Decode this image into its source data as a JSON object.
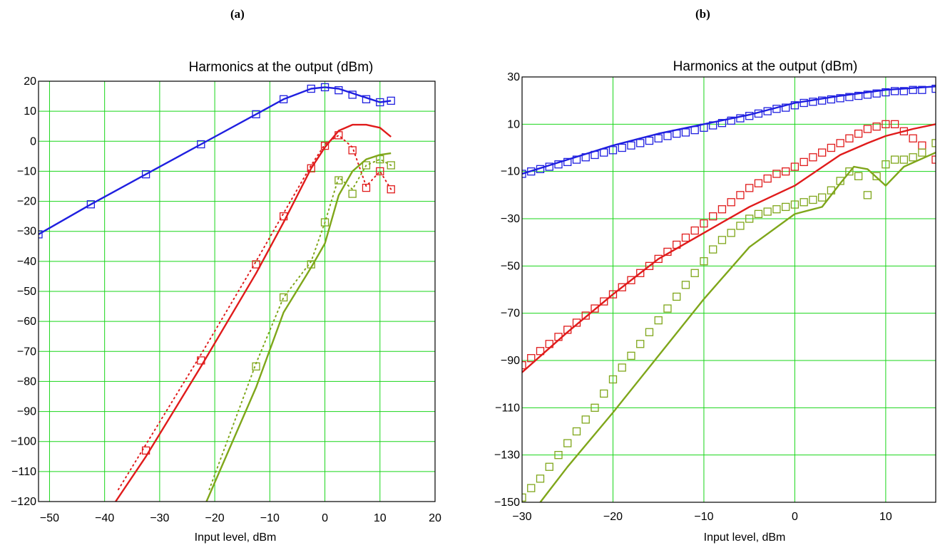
{
  "panels": {
    "a": {
      "label": "(a)"
    },
    "b": {
      "label": "(b)"
    }
  },
  "colors": {
    "fundamental": "#1f1fe0",
    "second": "#e01b1b",
    "third": "#7fa61a",
    "grid": "#19d619"
  },
  "chart_data": [
    {
      "type": "line",
      "title": "Harmonics at the output (dBm)",
      "xlabel": "Input level, dBm",
      "ylabel": "",
      "xlim": [
        -52,
        20
      ],
      "ylim": [
        -120,
        20
      ],
      "xticks": [
        -50,
        -40,
        -30,
        -20,
        -10,
        0,
        10,
        20
      ],
      "yticks": [
        20,
        10,
        0,
        -10,
        -20,
        -30,
        -40,
        -50,
        -60,
        -70,
        -80,
        -90,
        -100,
        -110,
        -120
      ],
      "grid": true,
      "series": [
        {
          "key": "fundamental",
          "style": "solid",
          "x": [
            -52,
            -42.5,
            -32.5,
            -22.5,
            -12.5,
            -7.5,
            -2.5,
            0,
            2.5,
            5,
            7.5,
            10,
            12
          ],
          "y": [
            -31,
            -21,
            -11,
            -1,
            9,
            14,
            17.5,
            18,
            17.5,
            16,
            14.5,
            13,
            13.5
          ]
        },
        {
          "key": "fundamental",
          "style": "markers",
          "x": [
            -52,
            -42.5,
            -32.5,
            -22.5,
            -12.5,
            -7.5,
            -2.5,
            0,
            2.5,
            5,
            7.5,
            10,
            12
          ],
          "y": [
            -31,
            -21,
            -11,
            -1,
            9,
            14,
            17.5,
            18,
            17,
            15.5,
            14,
            13,
            13.5
          ]
        },
        {
          "key": "second",
          "style": "solid",
          "x": [
            -38,
            -32.5,
            -22.5,
            -12.5,
            -7.5,
            -2.5,
            0,
            2.5,
            5,
            7.5,
            10,
            12
          ],
          "y": [
            -120,
            -105,
            -75,
            -44,
            -27,
            -9,
            -2,
            3.5,
            5.5,
            5.5,
            4.5,
            1.5
          ]
        },
        {
          "key": "second",
          "style": "dotted",
          "x": [
            -37.5,
            -32.5,
            -22.5,
            -12.5,
            -7.5,
            -2.5,
            0,
            2.5,
            5,
            7.5,
            10,
            12
          ],
          "y": [
            -116,
            -101,
            -71,
            -40,
            -24,
            -8,
            -1,
            2,
            -2,
            -15,
            -10,
            -16
          ]
        },
        {
          "key": "second",
          "style": "markers",
          "x": [
            -32.5,
            -22.5,
            -12.5,
            -7.5,
            -2.5,
            0,
            2.5,
            5,
            7.5,
            10,
            12
          ],
          "y": [
            -103,
            -73,
            -41,
            -25,
            -9,
            -1.5,
            2,
            -3,
            -15.5,
            -10,
            -16
          ]
        },
        {
          "key": "third",
          "style": "solid",
          "x": [
            -21.5,
            -12.5,
            -7.5,
            -2.5,
            0,
            2.5,
            5,
            7.5,
            10,
            12
          ],
          "y": [
            -120,
            -82,
            -57,
            -42,
            -34,
            -18,
            -10,
            -6,
            -4.5,
            -4
          ]
        },
        {
          "key": "third",
          "style": "dotted",
          "x": [
            -21,
            -12.5,
            -7.5,
            -2.5,
            0,
            2.5,
            5,
            7.5,
            10,
            12
          ],
          "y": [
            -116,
            -74,
            -52,
            -40,
            -27,
            -12,
            -16,
            -8,
            -6,
            -8
          ]
        },
        {
          "key": "third",
          "style": "markers",
          "x": [
            -12.5,
            -7.5,
            -2.5,
            0,
            2.5,
            5,
            7.5,
            10,
            12
          ],
          "y": [
            -75,
            -52,
            -41,
            -27,
            -13,
            -17.5,
            -8,
            -6,
            -8
          ]
        }
      ]
    },
    {
      "type": "line",
      "title": "Harmonics at the output (dBm)",
      "xlabel": "Input level, dBm",
      "ylabel": "",
      "xlim": [
        -30,
        15.5
      ],
      "ylim": [
        -150,
        30
      ],
      "xticks": [
        -30,
        -20,
        -10,
        0,
        10
      ],
      "yticks": [
        30,
        10,
        -10,
        -30,
        -50,
        -70,
        -90,
        -110,
        -130,
        -150
      ],
      "grid": true,
      "series": [
        {
          "key": "fundamental",
          "style": "solid",
          "x": [
            -30,
            -25,
            -20,
            -15,
            -10,
            -5,
            0,
            5,
            10,
            15.5
          ],
          "y": [
            -11,
            -5,
            1,
            6,
            10,
            14,
            19,
            22,
            24.5,
            26
          ]
        },
        {
          "key": "fundamental",
          "style": "markers",
          "x": [
            -30,
            -29,
            -28,
            -27,
            -26,
            -25,
            -24,
            -23,
            -22,
            -21,
            -20,
            -19,
            -18,
            -17,
            -16,
            -15,
            -14,
            -13,
            -12,
            -11,
            -10,
            -9,
            -8,
            -7,
            -6,
            -5,
            -4,
            -3,
            -2,
            -1,
            0,
            1,
            2,
            3,
            4,
            5,
            6,
            7,
            8,
            9,
            10,
            11,
            12,
            13,
            14,
            15.5
          ],
          "y": [
            -11,
            -10,
            -9,
            -8,
            -7,
            -6,
            -5,
            -4,
            -3,
            -2,
            -1,
            0,
            1,
            2,
            3,
            4,
            5,
            6,
            6.5,
            7.5,
            8.5,
            9.5,
            10.5,
            11.5,
            12.5,
            13.5,
            14.5,
            15.5,
            16.5,
            17,
            18,
            19,
            19.5,
            20,
            20.5,
            21,
            21.5,
            22,
            22.5,
            23,
            23.5,
            24,
            24,
            24.5,
            24.5,
            25
          ]
        },
        {
          "key": "second",
          "style": "solid",
          "x": [
            -30,
            -25,
            -20,
            -15,
            -10,
            -5,
            0,
            5,
            8,
            10,
            13,
            15.5
          ],
          "y": [
            -95,
            -78,
            -62,
            -47,
            -36,
            -25,
            -16,
            -3,
            2,
            5,
            8,
            10
          ]
        },
        {
          "key": "second",
          "style": "markers",
          "x": [
            -30,
            -29,
            -28,
            -27,
            -26,
            -25,
            -24,
            -23,
            -22,
            -21,
            -20,
            -19,
            -18,
            -17,
            -16,
            -15,
            -14,
            -13,
            -12,
            -11,
            -10,
            -9,
            -8,
            -7,
            -6,
            -5,
            -4,
            -3,
            -2,
            -1,
            0,
            1,
            2,
            3,
            4,
            5,
            6,
            7,
            8,
            9,
            10,
            11,
            12,
            13,
            14,
            15.5
          ],
          "y": [
            -92,
            -89,
            -86,
            -83,
            -80,
            -77,
            -74,
            -71,
            -68,
            -65,
            -62,
            -59,
            -56,
            -53,
            -50,
            -47,
            -44,
            -41,
            -38,
            -35,
            -32,
            -29,
            -26,
            -23,
            -20,
            -17,
            -15,
            -13,
            -11,
            -10,
            -8,
            -6,
            -4,
            -2,
            0,
            2,
            4,
            6,
            8,
            9,
            10,
            10,
            7,
            4,
            1,
            -5
          ]
        },
        {
          "key": "third",
          "style": "solid",
          "x": [
            -28,
            -25,
            -20,
            -15,
            -10,
            -5,
            0,
            3,
            5,
            6.5,
            8,
            10,
            12,
            15.5
          ],
          "y": [
            -150,
            -135,
            -112,
            -88,
            -64,
            -42,
            -28,
            -25,
            -15,
            -8,
            -9,
            -16,
            -8,
            -2
          ]
        },
        {
          "key": "third",
          "style": "markers",
          "x": [
            -30,
            -29,
            -28,
            -27,
            -26,
            -25,
            -24,
            -23,
            -22,
            -21,
            -20,
            -19,
            -18,
            -17,
            -16,
            -15,
            -14,
            -13,
            -12,
            -11,
            -10,
            -9,
            -8,
            -7,
            -6,
            -5,
            -4,
            -3,
            -2,
            -1,
            0,
            1,
            2,
            3,
            4,
            5,
            6,
            7,
            8,
            9,
            10,
            11,
            12,
            13,
            14,
            15.5
          ],
          "y": [
            -148,
            -144,
            -140,
            -135,
            -130,
            -125,
            -120,
            -115,
            -110,
            -104,
            -98,
            -93,
            -88,
            -83,
            -78,
            -73,
            -68,
            -63,
            -58,
            -53,
            -48,
            -43,
            -39,
            -36,
            -33,
            -30,
            -28,
            -27,
            -26,
            -25,
            -24,
            -23,
            -22,
            -21,
            -18,
            -14,
            -10,
            -12,
            -20,
            -12,
            -7,
            -5,
            -5,
            -4,
            -2,
            2
          ]
        }
      ]
    }
  ]
}
